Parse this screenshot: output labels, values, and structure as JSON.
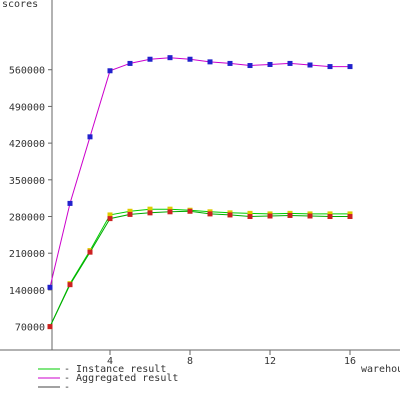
{
  "chart_data": {
    "type": "line",
    "ylabel": "scores",
    "xlabel": "warehouses",
    "xlim": [
      -1.5,
      18.5
    ],
    "ylim": [
      -70000,
      693000
    ],
    "xticks": [
      4,
      8,
      12,
      16
    ],
    "yticks": [
      70000,
      140000,
      210000,
      280000,
      350000,
      420000,
      490000,
      560000
    ],
    "grid": false,
    "legend_position": "bottom-left",
    "series": [
      {
        "name": "Aggregated result",
        "color": "#cc00cc",
        "marker_color": "#2222cc",
        "x": [
          1,
          2,
          3,
          4,
          5,
          6,
          7,
          8,
          9,
          10,
          11,
          12,
          13,
          14,
          15,
          16
        ],
        "values": [
          145000,
          305000,
          432000,
          558000,
          572000,
          580000,
          583000,
          580000,
          575000,
          572000,
          568000,
          570000,
          572000,
          569000,
          566000,
          566000
        ]
      },
      {
        "name": "Instance result",
        "color": "#00cc00",
        "marker_color": "#ddcc00",
        "x": [
          1,
          2,
          3,
          4,
          5,
          6,
          7,
          8,
          9,
          10,
          11,
          12,
          13,
          14,
          15,
          16
        ],
        "values": [
          70000,
          152000,
          215000,
          283000,
          290000,
          294000,
          294000,
          292000,
          289000,
          287000,
          286000,
          285000,
          286000,
          285000,
          285000,
          285000
        ]
      },
      {
        "name": "",
        "color": "#00aa00",
        "marker_color": "#cc2222",
        "x": [
          1,
          2,
          3,
          4,
          5,
          6,
          7,
          8,
          9,
          10,
          11,
          12,
          13,
          14,
          15,
          16
        ],
        "values": [
          70000,
          150000,
          212000,
          276000,
          284000,
          287000,
          289000,
          290000,
          285000,
          283000,
          280000,
          281000,
          282000,
          281000,
          280000,
          280000
        ]
      }
    ],
    "legend": [
      {
        "label": "- Instance result",
        "color": "#00cc00"
      },
      {
        "label": "- Aggregated result",
        "color": "#cc00cc"
      },
      {
        "label": "-",
        "color": "#444444"
      }
    ]
  }
}
